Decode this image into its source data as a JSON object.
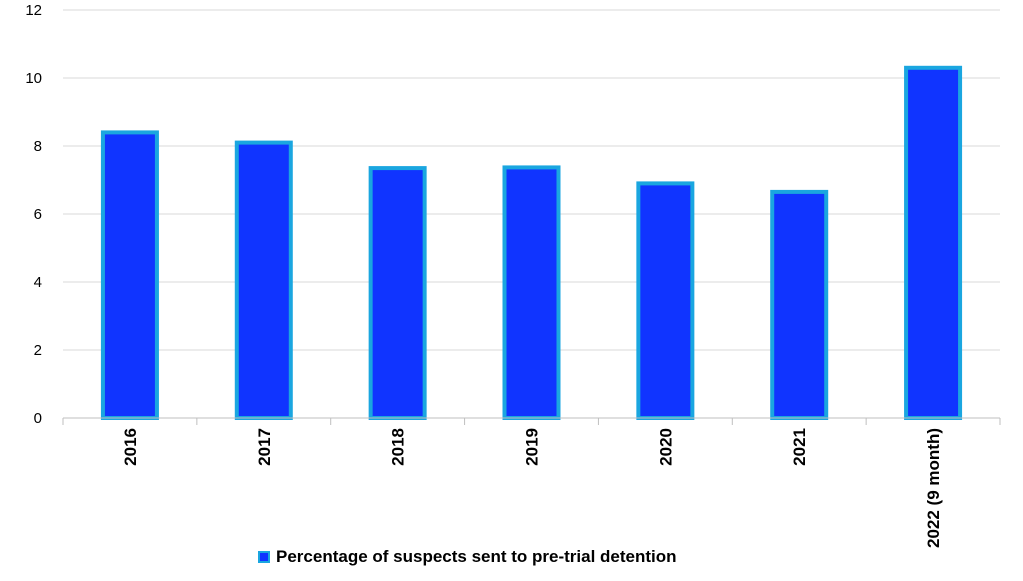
{
  "chart_data": {
    "type": "bar",
    "categories": [
      "2016",
      "2017",
      "2018",
      "2019",
      "2020",
      "2021",
      "2022 (9 month)"
    ],
    "series": [
      {
        "name": "Percentage of suspects sent to pre-trial detention",
        "values": [
          8.4,
          8.1,
          7.35,
          7.37,
          6.9,
          6.65,
          10.3
        ]
      }
    ],
    "ylim": [
      0,
      12
    ],
    "yticks": [
      0,
      2,
      4,
      6,
      8,
      10,
      12
    ],
    "grid": true,
    "legend": "bottom",
    "colors": {
      "bar_fill": "#1034ff",
      "bar_edge": "#1aa6e0",
      "grid": "#d9d9d9",
      "axis": "#bfbfbf"
    }
  }
}
